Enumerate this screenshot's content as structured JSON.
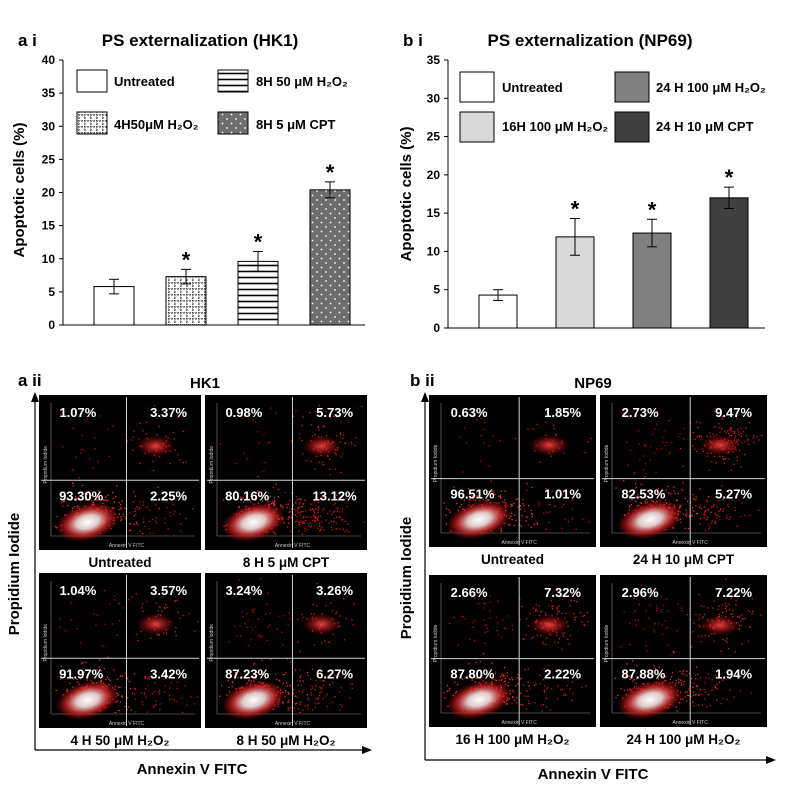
{
  "panels": {
    "ai": {
      "label": "a i",
      "title": "PS externalization (HK1)"
    },
    "bi": {
      "label": "b i",
      "title": "PS externalization (NP69)"
    },
    "aii": {
      "label": "a ii",
      "title": "HK1",
      "xlabel": "Annexin V FITC",
      "ylabel": "Propidium Iodide"
    },
    "bii": {
      "label": "b ii",
      "title": "NP69",
      "xlabel": "Annexin V FITC",
      "ylabel": "Propidium Iodide"
    }
  },
  "chart_data": [
    {
      "id": "hk1",
      "type": "bar",
      "title": "PS externalization (HK1)",
      "xlabel": "",
      "ylabel": "Apoptotic cells (%)",
      "ylim": [
        0,
        40
      ],
      "yticks": [
        "0",
        "5",
        "10",
        "15",
        "20",
        "25",
        "30",
        "35",
        "40"
      ],
      "categories": [
        "Untreated",
        "4H50μM H2O2",
        "8H 50 μM H2O2",
        "8H 5 μM CPT"
      ],
      "values": [
        5.8,
        7.3,
        9.6,
        20.4
      ],
      "errors": [
        1.1,
        1.1,
        1.5,
        1.2
      ],
      "significant": [
        false,
        true,
        true,
        true
      ],
      "sig_mark": "*",
      "legend": [
        "Untreated",
        "8H 50 μM H₂O₂",
        "4H50μM H₂O₂",
        "8H 5 μM CPT"
      ]
    },
    {
      "id": "np69",
      "type": "bar",
      "title": "PS externalization (NP69)",
      "xlabel": "",
      "ylabel": "Apoptotic cells (%)",
      "ylim": [
        0,
        35
      ],
      "yticks": [
        "0",
        "5",
        "10",
        "15",
        "20",
        "25",
        "30",
        "35"
      ],
      "categories": [
        "Untreated",
        "16H 100 μM H2O2",
        "24 H 100 μM H2O2",
        "24 H 10 μM CPT"
      ],
      "values": [
        4.3,
        11.9,
        12.4,
        17.0
      ],
      "errors": [
        0.7,
        2.4,
        1.8,
        1.4
      ],
      "significant": [
        false,
        true,
        true,
        true
      ],
      "sig_mark": "*",
      "legend": [
        "Untreated",
        "24 H 100 μM H₂O₂",
        "16H 100 μM H₂O₂",
        "24 H 10 μM CPT"
      ]
    },
    {
      "id": "hk1_flow",
      "type": "scatter",
      "title": "HK1",
      "xlabel": "Annexin V FITC",
      "ylabel": "Propidium Iodide",
      "plot_axis_x": "Annexin V FITC",
      "plot_axis_y": "Propidium Iodide",
      "plots": [
        {
          "caption": "Untreated",
          "ul": "1.07%",
          "ur": "3.37%",
          "ll": "93.30%",
          "lr": "2.25%"
        },
        {
          "caption": "8 H 5 μM CPT",
          "ul": "0.98%",
          "ur": "5.73%",
          "ll": "80.16%",
          "lr": "13.12%"
        },
        {
          "caption": "4 H 50 μM H₂O₂",
          "ul": "1.04%",
          "ur": "3.57%",
          "ll": "91.97%",
          "lr": "3.42%"
        },
        {
          "caption": "8 H 50 μM H₂O₂",
          "ul": "3.24%",
          "ur": "3.26%",
          "ll": "87.23%",
          "lr": "6.27%"
        }
      ]
    },
    {
      "id": "np69_flow",
      "type": "scatter",
      "title": "NP69",
      "xlabel": "Annexin V FITC",
      "ylabel": "Propidium Iodide",
      "plot_axis_x": "Annexin V FITC",
      "plot_axis_y": "Propidium Iodide",
      "plots": [
        {
          "caption": "Untreated",
          "ul": "0.63%",
          "ur": "1.85%",
          "ll": "96.51%",
          "lr": "1.01%"
        },
        {
          "caption": "24 H 10 μM CPT",
          "ul": "2.73%",
          "ur": "9.47%",
          "ll": "82.53%",
          "lr": "5.27%"
        },
        {
          "caption": "16 H 100 μM H₂O₂",
          "ul": "2.66%",
          "ur": "7.32%",
          "ll": "87.80%",
          "lr": "2.22%"
        },
        {
          "caption": "24 H 100 μM H₂O₂",
          "ul": "2.96%",
          "ur": "7.22%",
          "ll": "87.88%",
          "lr": "1.94%"
        }
      ]
    }
  ]
}
